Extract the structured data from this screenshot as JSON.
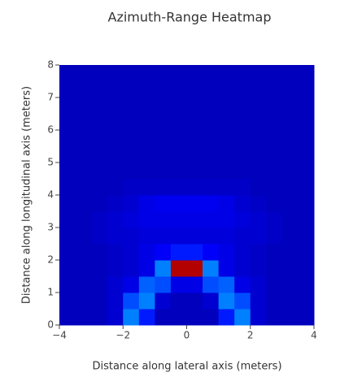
{
  "chart_data": {
    "type": "heatmap",
    "title": "Azimuth-Range Heatmap",
    "x_label": "Distance along lateral axis (meters)",
    "y_label": "Distance along longitudinal axis (meters)",
    "colorscale": "jet",
    "x": [
      -3.75,
      -3.25,
      -2.75,
      -2.25,
      -1.75,
      -1.25,
      -0.75,
      -0.25,
      0.25,
      0.75,
      1.25,
      1.75,
      2.25,
      2.75,
      3.25,
      3.75
    ],
    "y": [
      0.25,
      0.75,
      1.25,
      1.75,
      2.25,
      2.75,
      3.25,
      3.75,
      4.25,
      4.75,
      5.25,
      5.75,
      6.25,
      6.75,
      7.25,
      7.75
    ],
    "z": [
      [
        0.06,
        0.06,
        0.06,
        0.08,
        0.25,
        0.15,
        0.06,
        0.06,
        0.06,
        0.06,
        0.15,
        0.25,
        0.08,
        0.06,
        0.06,
        0.06
      ],
      [
        0.06,
        0.06,
        0.06,
        0.08,
        0.2,
        0.25,
        0.08,
        0.06,
        0.06,
        0.08,
        0.25,
        0.2,
        0.08,
        0.06,
        0.06,
        0.06
      ],
      [
        0.06,
        0.06,
        0.06,
        0.08,
        0.1,
        0.22,
        0.2,
        0.1,
        0.1,
        0.2,
        0.22,
        0.1,
        0.08,
        0.06,
        0.06,
        0.06
      ],
      [
        0.06,
        0.06,
        0.06,
        0.07,
        0.08,
        0.1,
        0.25,
        0.95,
        0.95,
        0.25,
        0.1,
        0.08,
        0.07,
        0.06,
        0.06,
        0.06
      ],
      [
        0.06,
        0.06,
        0.06,
        0.07,
        0.08,
        0.1,
        0.12,
        0.15,
        0.15,
        0.12,
        0.1,
        0.08,
        0.07,
        0.06,
        0.06,
        0.06
      ],
      [
        0.06,
        0.06,
        0.07,
        0.08,
        0.08,
        0.09,
        0.09,
        0.09,
        0.09,
        0.09,
        0.09,
        0.08,
        0.08,
        0.07,
        0.06,
        0.06
      ],
      [
        0.06,
        0.06,
        0.07,
        0.08,
        0.09,
        0.1,
        0.1,
        0.1,
        0.1,
        0.1,
        0.1,
        0.09,
        0.08,
        0.07,
        0.06,
        0.06
      ],
      [
        0.06,
        0.06,
        0.06,
        0.07,
        0.08,
        0.1,
        0.11,
        0.11,
        0.11,
        0.11,
        0.1,
        0.08,
        0.07,
        0.06,
        0.06,
        0.06
      ],
      [
        0.06,
        0.06,
        0.06,
        0.06,
        0.07,
        0.07,
        0.07,
        0.07,
        0.07,
        0.07,
        0.07,
        0.07,
        0.06,
        0.06,
        0.06,
        0.06
      ],
      [
        0.06,
        0.06,
        0.06,
        0.06,
        0.06,
        0.06,
        0.06,
        0.06,
        0.06,
        0.06,
        0.06,
        0.06,
        0.06,
        0.06,
        0.06,
        0.06
      ],
      [
        0.06,
        0.06,
        0.06,
        0.06,
        0.06,
        0.06,
        0.06,
        0.06,
        0.06,
        0.06,
        0.06,
        0.06,
        0.06,
        0.06,
        0.06,
        0.06
      ],
      [
        0.06,
        0.06,
        0.06,
        0.06,
        0.06,
        0.06,
        0.06,
        0.06,
        0.06,
        0.06,
        0.06,
        0.06,
        0.06,
        0.06,
        0.06,
        0.06
      ],
      [
        0.06,
        0.06,
        0.06,
        0.06,
        0.06,
        0.06,
        0.06,
        0.06,
        0.06,
        0.06,
        0.06,
        0.06,
        0.06,
        0.06,
        0.06,
        0.06
      ],
      [
        0.06,
        0.06,
        0.06,
        0.06,
        0.06,
        0.06,
        0.06,
        0.06,
        0.06,
        0.06,
        0.06,
        0.06,
        0.06,
        0.06,
        0.06,
        0.06
      ],
      [
        0.06,
        0.06,
        0.06,
        0.06,
        0.06,
        0.06,
        0.06,
        0.06,
        0.06,
        0.06,
        0.06,
        0.06,
        0.06,
        0.06,
        0.06,
        0.06
      ],
      [
        0.06,
        0.06,
        0.06,
        0.06,
        0.06,
        0.06,
        0.06,
        0.06,
        0.06,
        0.06,
        0.06,
        0.06,
        0.06,
        0.06,
        0.06,
        0.06
      ]
    ],
    "zlim": [
      0,
      1
    ],
    "xlim": [
      -4,
      4
    ],
    "xticks": [
      {
        "value": -4,
        "label": "−4"
      },
      {
        "value": -2,
        "label": "−2"
      },
      0,
      2,
      4
    ],
    "ylim": [
      0,
      8
    ],
    "yticks": [
      0,
      1,
      2,
      3,
      4,
      5,
      6,
      7,
      8
    ]
  }
}
